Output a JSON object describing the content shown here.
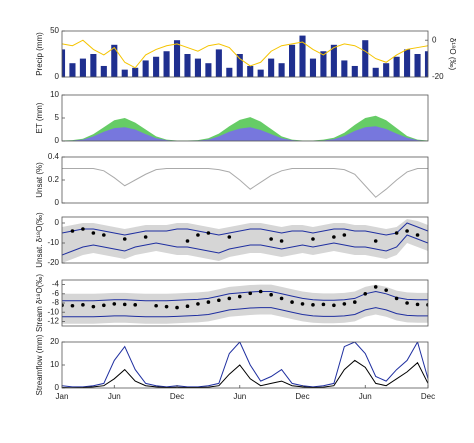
{
  "chart_data": [
    {
      "type": "bar",
      "ylabel": "Precip (mm)",
      "y2label": "δ¹⁸O (‰)",
      "xlim": [
        0,
        35
      ],
      "ylim": [
        0,
        50
      ],
      "yticks": [
        0,
        50
      ],
      "y2lim": [
        -20,
        5
      ],
      "y2ticks": [
        0,
        -20
      ],
      "x": [
        0,
        1,
        2,
        3,
        4,
        5,
        6,
        7,
        8,
        9,
        10,
        11,
        12,
        13,
        14,
        15,
        16,
        17,
        18,
        19,
        20,
        21,
        22,
        23,
        24,
        25,
        26,
        27,
        28,
        29,
        30,
        31,
        32,
        33,
        34,
        35
      ],
      "series": [
        {
          "type": "bar",
          "color": "#1f2f8f",
          "values": [
            30,
            15,
            20,
            25,
            12,
            35,
            8,
            10,
            18,
            22,
            28,
            40,
            25,
            20,
            15,
            30,
            10,
            25,
            12,
            8,
            20,
            15,
            35,
            45,
            20,
            28,
            35,
            18,
            12,
            40,
            10,
            15,
            22,
            30,
            25,
            28
          ]
        },
        {
          "type": "line",
          "axis": "y2",
          "color": "#f5c400",
          "values": [
            -2,
            -3,
            0,
            -5,
            -8,
            -4,
            -12,
            -15,
            -8,
            -5,
            -3,
            -2,
            -4,
            -6,
            -3,
            -2,
            -4,
            -10,
            -14,
            -12,
            -6,
            -3,
            -2,
            -1,
            -5,
            -8,
            -4,
            -2,
            -3,
            -6,
            -10,
            -12,
            -8,
            -5,
            -4,
            -3
          ]
        }
      ]
    },
    {
      "type": "area",
      "ylabel": "ET (mm)",
      "xlim": [
        0,
        35
      ],
      "ylim": [
        0,
        10
      ],
      "yticks": [
        0,
        5,
        10
      ],
      "x": [
        0,
        1,
        2,
        3,
        4,
        5,
        6,
        7,
        8,
        9,
        10,
        11,
        12,
        13,
        14,
        15,
        16,
        17,
        18,
        19,
        20,
        21,
        22,
        23,
        24,
        25,
        26,
        27,
        28,
        29,
        30,
        31,
        32,
        33,
        34,
        35
      ],
      "series": [
        {
          "type": "area",
          "color": "#66cc66",
          "values": [
            0.1,
            0.2,
            0.5,
            1.5,
            3,
            4.5,
            5,
            4,
            2.5,
            1,
            0.3,
            0.1,
            0.1,
            0.2,
            0.6,
            1.6,
            3.2,
            4.6,
            5.2,
            4.2,
            2.6,
            1,
            0.3,
            0.1,
            0.1,
            0.3,
            0.7,
            1.8,
            3.5,
            5,
            5.5,
            4.5,
            2.8,
            1.1,
            0.3,
            0.1
          ]
        },
        {
          "type": "area",
          "color": "#7777dd",
          "values": [
            0,
            0.1,
            0.3,
            1,
            2,
            2.8,
            3,
            2.5,
            1.5,
            0.6,
            0.2,
            0,
            0,
            0.1,
            0.3,
            1,
            2,
            2.7,
            3,
            2.4,
            1.5,
            0.6,
            0.2,
            0,
            0,
            0.1,
            0.4,
            1.1,
            2.2,
            3,
            3.2,
            2.6,
            1.6,
            0.7,
            0.2,
            0
          ]
        }
      ]
    },
    {
      "type": "line",
      "ylabel": "Unsat (%)",
      "xlim": [
        0,
        35
      ],
      "ylim": [
        0,
        0.4
      ],
      "yticks": [
        0,
        0.2,
        0.4
      ],
      "x": [
        0,
        1,
        2,
        3,
        4,
        5,
        6,
        7,
        8,
        9,
        10,
        11,
        12,
        13,
        14,
        15,
        16,
        17,
        18,
        19,
        20,
        21,
        22,
        23,
        24,
        25,
        26,
        27,
        28,
        29,
        30,
        31,
        32,
        33,
        34,
        35
      ],
      "series": [
        {
          "type": "line",
          "color": "#aaaaaa",
          "values": [
            0.3,
            0.3,
            0.3,
            0.3,
            0.28,
            0.22,
            0.15,
            0.2,
            0.25,
            0.29,
            0.3,
            0.3,
            0.3,
            0.3,
            0.3,
            0.29,
            0.27,
            0.2,
            0.12,
            0.18,
            0.24,
            0.28,
            0.3,
            0.3,
            0.3,
            0.3,
            0.3,
            0.29,
            0.25,
            0.15,
            0.05,
            0.12,
            0.2,
            0.27,
            0.3,
            0.3
          ]
        }
      ]
    },
    {
      "type": "band",
      "ylabel": "Unsat. δ¹⁸O(‰)",
      "xlim": [
        0,
        35
      ],
      "ylim": [
        -20,
        3
      ],
      "yticks": [
        0,
        -10,
        -20
      ],
      "x": [
        0,
        1,
        2,
        3,
        4,
        5,
        6,
        7,
        8,
        9,
        10,
        11,
        12,
        13,
        14,
        15,
        16,
        17,
        18,
        19,
        20,
        21,
        22,
        23,
        24,
        25,
        26,
        27,
        28,
        29,
        30,
        31,
        32,
        33,
        34,
        35
      ],
      "series": [
        {
          "type": "band",
          "color": "#d6d6d6",
          "values": [
            -2,
            -1,
            0,
            0,
            -1,
            -2,
            -3,
            -2,
            -1,
            -1,
            -1,
            0,
            0,
            -1,
            -2,
            -3,
            -2,
            -1,
            0,
            0,
            -1,
            -2,
            -1,
            -1,
            -2,
            -1,
            0,
            0,
            -1,
            -1,
            -2,
            -3,
            -2,
            2,
            1,
            -1
          ],
          "lower": [
            -20,
            -18,
            -16,
            -15,
            -16,
            -17,
            -18,
            -16,
            -15,
            -14,
            -15,
            -16,
            -16,
            -17,
            -18,
            -19,
            -17,
            -16,
            -15,
            -15,
            -16,
            -17,
            -16,
            -15,
            -16,
            -15,
            -14,
            -15,
            -16,
            -16,
            -17,
            -18,
            -16,
            -10,
            -12,
            -14
          ]
        },
        {
          "type": "line",
          "color": "#1f2fa0",
          "values": [
            -5,
            -4,
            -3,
            -3,
            -4,
            -5,
            -6,
            -5,
            -4,
            -4,
            -4,
            -3,
            -3,
            -4,
            -5,
            -6,
            -5,
            -4,
            -3,
            -3,
            -4,
            -5,
            -4,
            -4,
            -5,
            -4,
            -3,
            -3,
            -4,
            -4,
            -5,
            -6,
            -5,
            0,
            -2,
            -4
          ]
        },
        {
          "type": "line",
          "color": "#1f2fa0",
          "values": [
            -16,
            -14,
            -12,
            -11,
            -12,
            -13,
            -14,
            -12,
            -11,
            -10,
            -11,
            -12,
            -12,
            -13,
            -14,
            -15,
            -13,
            -12,
            -11,
            -11,
            -12,
            -13,
            -12,
            -11,
            -12,
            -11,
            -10,
            -11,
            -12,
            -12,
            -13,
            -14,
            -12,
            -6,
            -8,
            -10
          ]
        },
        {
          "type": "scatter",
          "color": "#000000",
          "values": [
            null,
            -4,
            -3,
            -5,
            -6,
            null,
            -8,
            null,
            -7,
            null,
            null,
            null,
            -9,
            -6,
            -5,
            null,
            -7,
            null,
            null,
            null,
            -8,
            -9,
            null,
            null,
            -8,
            null,
            -7,
            -6,
            null,
            null,
            -9,
            null,
            -5,
            -4,
            -6,
            null
          ]
        }
      ]
    },
    {
      "type": "band",
      "ylabel": "Stream δ¹⁸O(‰)",
      "xlim": [
        0,
        35
      ],
      "ylim": [
        -13,
        -3
      ],
      "yticks": [
        -4,
        -6,
        -8,
        -10,
        -12
      ],
      "x": [
        0,
        1,
        2,
        3,
        4,
        5,
        6,
        7,
        8,
        9,
        10,
        11,
        12,
        13,
        14,
        15,
        16,
        17,
        18,
        19,
        20,
        21,
        22,
        23,
        24,
        25,
        26,
        27,
        28,
        29,
        30,
        31,
        32,
        33,
        34,
        35
      ],
      "series": [
        {
          "type": "band",
          "color": "#d6d6d6",
          "values": [
            -6,
            -6,
            -6,
            -6,
            -5.9,
            -5.8,
            -5.8,
            -5.9,
            -6,
            -6,
            -6,
            -5.9,
            -5.8,
            -5.7,
            -5.5,
            -5,
            -4.5,
            -4.3,
            -4.1,
            -4,
            -4,
            -4.5,
            -5,
            -5.5,
            -5.8,
            -5.9,
            -5.9,
            -5.8,
            -5.5,
            -4.5,
            -4,
            -4.5,
            -5.3,
            -5.7,
            -5.8,
            -5.8
          ],
          "lower": [
            -12.5,
            -12.5,
            -12.5,
            -12.5,
            -12.4,
            -12.3,
            -12.3,
            -12.4,
            -12.5,
            -12.5,
            -12.5,
            -12.4,
            -12.3,
            -12.2,
            -12,
            -11.5,
            -11,
            -10.8,
            -10.6,
            -10.5,
            -10.5,
            -11,
            -11.5,
            -12,
            -12.3,
            -12.4,
            -12.4,
            -12.3,
            -12,
            -11,
            -10.5,
            -11,
            -11.8,
            -12.2,
            -12.3,
            -12.3
          ]
        },
        {
          "type": "line",
          "color": "#1f2fa0",
          "values": [
            -7.5,
            -7.5,
            -7.5,
            -7.5,
            -7.4,
            -7.3,
            -7.3,
            -7.4,
            -7.5,
            -7.5,
            -7.5,
            -7.4,
            -7.3,
            -7.2,
            -7,
            -6.5,
            -6,
            -5.8,
            -5.6,
            -5.5,
            -5.5,
            -6,
            -6.5,
            -7,
            -7.3,
            -7.4,
            -7.4,
            -7.3,
            -7,
            -6,
            -5.5,
            -6,
            -6.8,
            -7.2,
            -7.3,
            -7.3
          ]
        },
        {
          "type": "line",
          "color": "#1f2fa0",
          "values": [
            -11,
            -11,
            -11,
            -11,
            -10.9,
            -10.8,
            -10.8,
            -10.9,
            -11,
            -11,
            -11,
            -10.9,
            -10.8,
            -10.7,
            -10.5,
            -10,
            -9.5,
            -9.3,
            -9.1,
            -9,
            -9,
            -9.5,
            -10,
            -10.5,
            -10.8,
            -10.9,
            -10.9,
            -10.8,
            -10.5,
            -9.5,
            -9,
            -9.5,
            -10.3,
            -10.7,
            -10.8,
            -10.8
          ]
        },
        {
          "type": "scatter",
          "color": "#000000",
          "values": [
            -8.5,
            -8.6,
            -8.4,
            -8.8,
            -8.5,
            -8.2,
            -8.3,
            -8.4,
            null,
            -8.6,
            -8.8,
            -9,
            -8.7,
            -8.2,
            -7.8,
            -7.4,
            -7,
            -6.6,
            -5.9,
            -5.5,
            -6.2,
            -7,
            -7.8,
            -8.2,
            -8.4,
            -8.3,
            -8.5,
            -8.2,
            -7.8,
            -6,
            -4.5,
            -5.2,
            -7,
            -8,
            -8.3,
            -8.4
          ]
        }
      ]
    },
    {
      "type": "line",
      "ylabel": "Streamflow (mm)",
      "xlim": [
        0,
        35
      ],
      "ylim": [
        0,
        20
      ],
      "yticks": [
        0,
        10,
        20
      ],
      "xticks": [
        {
          "value": 0,
          "label": "Jan"
        },
        {
          "value": 5,
          "label": "Jun"
        },
        {
          "value": 11,
          "label": "Dec"
        },
        {
          "value": 17,
          "label": "Jun"
        },
        {
          "value": 23,
          "label": "Dec"
        },
        {
          "value": 29,
          "label": "Jun"
        },
        {
          "value": 35,
          "label": "Dec"
        }
      ],
      "x": [
        0,
        1,
        2,
        3,
        4,
        5,
        6,
        7,
        8,
        9,
        10,
        11,
        12,
        13,
        14,
        15,
        16,
        17,
        18,
        19,
        20,
        21,
        22,
        23,
        24,
        25,
        26,
        27,
        28,
        29,
        30,
        31,
        32,
        33,
        34,
        35
      ],
      "series": [
        {
          "type": "line",
          "color": "#1f2fa0",
          "values": [
            1,
            0.5,
            0.5,
            1,
            2,
            12,
            18,
            8,
            2,
            1,
            0.5,
            1,
            0.5,
            0.5,
            1,
            2,
            15,
            20,
            10,
            3,
            5,
            8,
            2,
            1,
            0.5,
            1,
            2,
            18,
            20,
            15,
            5,
            3,
            8,
            12,
            20,
            4
          ]
        },
        {
          "type": "line",
          "color": "#000000",
          "values": [
            0.2,
            0.1,
            0.2,
            0.5,
            1,
            4,
            8,
            3,
            1,
            0.5,
            0.2,
            0.3,
            0.2,
            0.2,
            0.4,
            1,
            6,
            10,
            4,
            1,
            2,
            3,
            1,
            0.5,
            0.2,
            0.4,
            1,
            8,
            12,
            9,
            2,
            1,
            4,
            7,
            11,
            2
          ]
        }
      ]
    }
  ]
}
